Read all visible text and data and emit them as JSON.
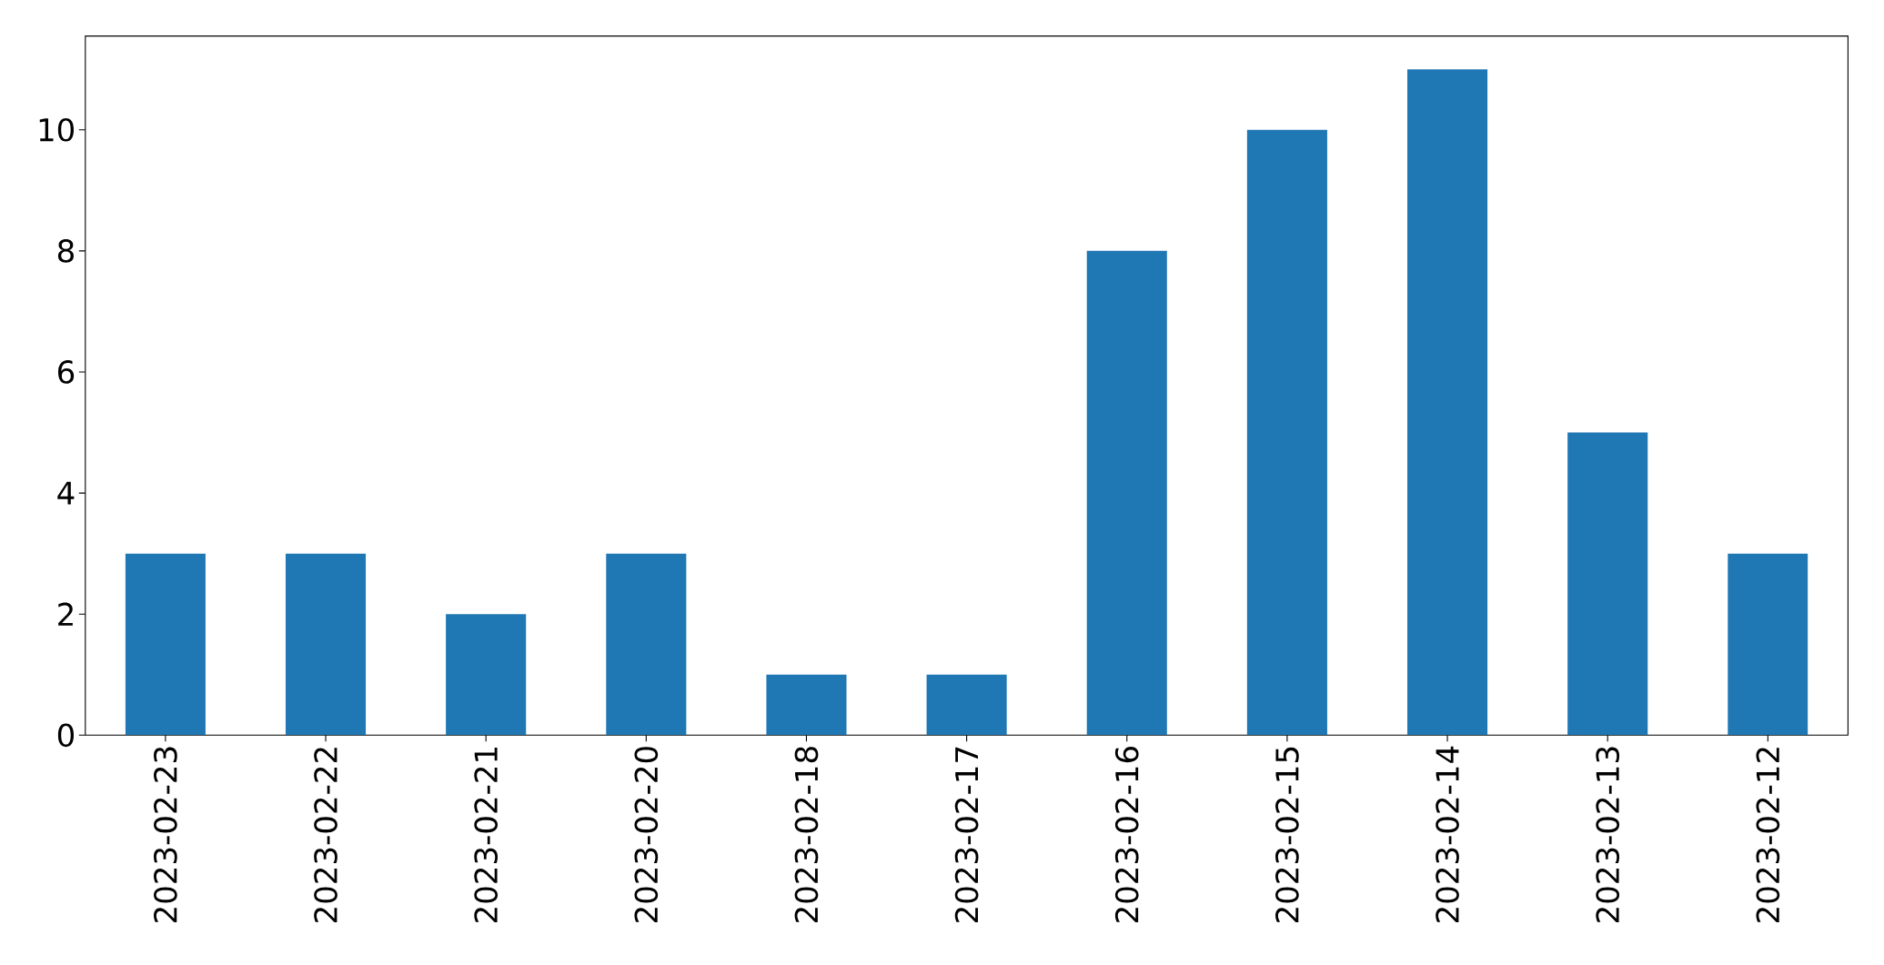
{
  "chart_data": {
    "type": "bar",
    "categories": [
      "2023-02-23",
      "2023-02-22",
      "2023-02-21",
      "2023-02-20",
      "2023-02-18",
      "2023-02-17",
      "2023-02-16",
      "2023-02-15",
      "2023-02-14",
      "2023-02-13",
      "2023-02-12"
    ],
    "values": [
      3,
      3,
      2,
      3,
      1,
      1,
      8,
      10,
      11,
      5,
      3
    ],
    "color": "#1f77b4",
    "ylim": [
      0,
      11.55
    ],
    "yticks": [
      0,
      2,
      4,
      6,
      8,
      10
    ]
  }
}
